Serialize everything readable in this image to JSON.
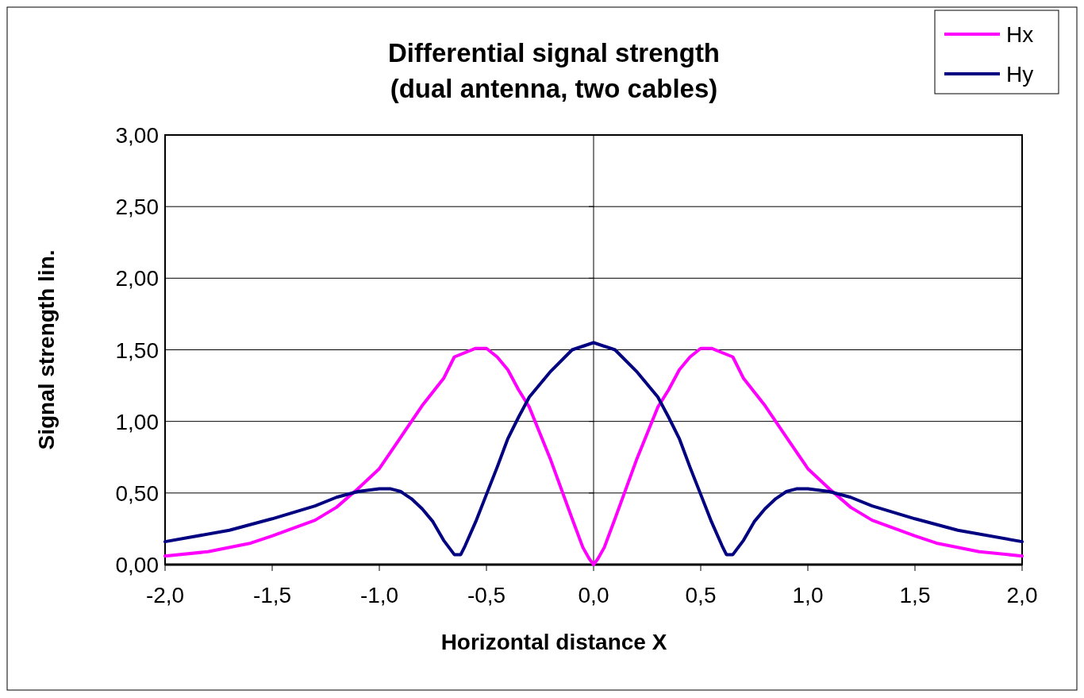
{
  "chart_data": {
    "type": "line",
    "title": "Differential signal strength\n(dual antenna, two cables)",
    "xlabel": "Horizontal distance X",
    "ylabel": "Signal strength lin.",
    "xlim": [
      -2,
      2
    ],
    "ylim": [
      0,
      3
    ],
    "xticks": [
      {
        "value": -2,
        "label": "-2,0"
      },
      {
        "value": -1.5,
        "label": "-1,5"
      },
      {
        "value": -1,
        "label": "-1,0"
      },
      {
        "value": -0.5,
        "label": "-0,5"
      },
      {
        "value": 0,
        "label": "0,0"
      },
      {
        "value": 0.5,
        "label": "0,5"
      },
      {
        "value": 1,
        "label": "1,0"
      },
      {
        "value": 1.5,
        "label": "1,5"
      },
      {
        "value": 2,
        "label": "2,0"
      }
    ],
    "yticks": [
      {
        "value": 0,
        "label": "0,00"
      },
      {
        "value": 0.5,
        "label": "0,50"
      },
      {
        "value": 1,
        "label": "1,00"
      },
      {
        "value": 1.5,
        "label": "1,50"
      },
      {
        "value": 2,
        "label": "2,00"
      },
      {
        "value": 2.5,
        "label": "2,50"
      },
      {
        "value": 3,
        "label": "3,00"
      }
    ],
    "grid": "y",
    "ref_lines": [
      {
        "axis": "x",
        "value": 0,
        "color": "#000000"
      }
    ],
    "legend": "top right",
    "line_style": "solid",
    "series": [
      {
        "name": "Hx",
        "color": "#ff00ff",
        "x": [
          -2,
          -1.8,
          -1.6,
          -1.5,
          -1.3,
          -1.2,
          -1.1,
          -1,
          -0.9,
          -0.8,
          -0.7,
          -0.65,
          -0.55,
          -0.5,
          -0.45,
          -0.4,
          -0.35,
          -0.3,
          -0.2,
          -0.1,
          -0.05,
          -0.02,
          0,
          0.02,
          0.05,
          0.1,
          0.2,
          0.3,
          0.35,
          0.4,
          0.45,
          0.5,
          0.55,
          0.65,
          0.7,
          0.8,
          0.9,
          1,
          1.1,
          1.2,
          1.3,
          1.5,
          1.6,
          1.8,
          2
        ],
        "values": [
          0.06,
          0.09,
          0.15,
          0.2,
          0.31,
          0.4,
          0.53,
          0.67,
          0.89,
          1.11,
          1.3,
          1.45,
          1.51,
          1.51,
          1.45,
          1.36,
          1.22,
          1.1,
          0.73,
          0.32,
          0.12,
          0.04,
          0,
          0.04,
          0.12,
          0.32,
          0.73,
          1.1,
          1.22,
          1.36,
          1.45,
          1.51,
          1.51,
          1.45,
          1.3,
          1.11,
          0.89,
          0.67,
          0.53,
          0.4,
          0.31,
          0.2,
          0.15,
          0.09,
          0.06
        ]
      },
      {
        "name": "Hy",
        "color": "#000080",
        "x": [
          -2,
          -1.7,
          -1.5,
          -1.3,
          -1.2,
          -1.1,
          -1,
          -0.95,
          -0.9,
          -0.85,
          -0.8,
          -0.75,
          -0.7,
          -0.65,
          -0.62,
          -0.6,
          -0.55,
          -0.5,
          -0.45,
          -0.4,
          -0.35,
          -0.3,
          -0.2,
          -0.1,
          0,
          0.1,
          0.2,
          0.3,
          0.35,
          0.4,
          0.45,
          0.5,
          0.55,
          0.6,
          0.62,
          0.65,
          0.7,
          0.75,
          0.8,
          0.85,
          0.9,
          0.95,
          1,
          1.1,
          1.2,
          1.3,
          1.5,
          1.7,
          2
        ],
        "values": [
          0.16,
          0.24,
          0.32,
          0.41,
          0.47,
          0.51,
          0.53,
          0.53,
          0.51,
          0.46,
          0.39,
          0.3,
          0.17,
          0.07,
          0.07,
          0.13,
          0.3,
          0.49,
          0.68,
          0.88,
          1.03,
          1.17,
          1.35,
          1.5,
          1.55,
          1.5,
          1.35,
          1.17,
          1.03,
          0.88,
          0.68,
          0.49,
          0.3,
          0.13,
          0.07,
          0.07,
          0.17,
          0.3,
          0.39,
          0.46,
          0.51,
          0.53,
          0.53,
          0.51,
          0.47,
          0.41,
          0.32,
          0.24,
          0.16
        ]
      }
    ]
  }
}
